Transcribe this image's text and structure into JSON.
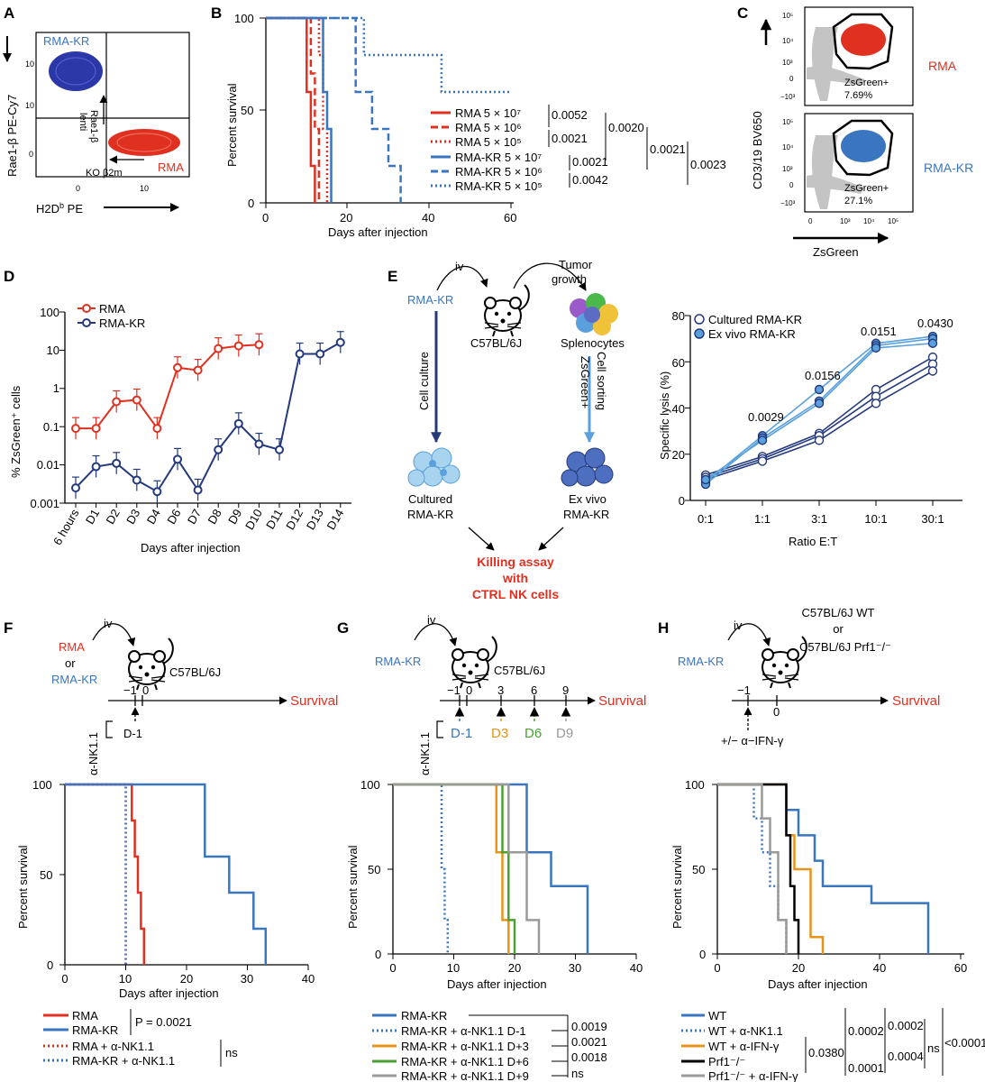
{
  "colors": {
    "rma_red": "#e03020",
    "rmakr_blue": "#3a75c0",
    "navy": "#243a7d",
    "light_blue": "#5aa0dc",
    "orange": "#e8941a",
    "green": "#4aa032",
    "gray": "#9a9a9a"
  },
  "panels": {
    "A": {
      "letter": "A",
      "ylabel": "Rae1-β PE-Cy7",
      "xlabel": "H2D",
      "xlabel_sup": "b",
      "xlabel_tail": " PE",
      "rmakr": "RMA-KR",
      "rma": "RMA",
      "arrow_up_label1": "Rae1-β",
      "arrow_up_label2": "lenti",
      "arrow_left_label": "KO β2m",
      "yticks": [
        "10",
        "10",
        "0"
      ],
      "xticks": [
        "0",
        "10"
      ]
    },
    "B": {
      "letter": "B",
      "ylabel": "Percent survival",
      "xlabel": "Days after injection",
      "xticks": [
        "0",
        "20",
        "40",
        "60"
      ],
      "yticks": [
        "0",
        "50",
        "100"
      ],
      "legend": [
        "RMA 5 × 10⁷",
        "RMA 5 × 10⁶",
        "RMA 5 × 10⁵",
        "RMA-KR 5 × 10⁷",
        "RMA-KR 5 × 10⁶",
        "RMA-KR 5 × 10⁵"
      ],
      "pvalues": [
        "0.0052",
        "0.0021",
        "0.0020",
        "0.0021",
        "0.0021",
        "0.0023",
        "0.0042"
      ]
    },
    "C": {
      "letter": "C",
      "ylabel": "CD3/19 BV650",
      "xlabel": "ZsGreen",
      "top_label": "RMA",
      "top_gate": "ZsGreen+",
      "top_pct": "7.69%",
      "bottom_label": "RMA-KR",
      "bottom_gate": "ZsGreen+",
      "bottom_pct": "27.1%",
      "yticks": [
        "10⁵",
        "10⁴",
        "10³",
        "0",
        "−10³"
      ],
      "xticks": [
        "0",
        "10³",
        "10⁴",
        "10⁵"
      ]
    },
    "D": {
      "letter": "D",
      "ylabel": "% ZsGreen⁺ cells",
      "xlabel": "Days after injection",
      "legend": [
        "RMA",
        "RMA-KR"
      ],
      "yticks": [
        "100",
        "10",
        "1",
        "0.1",
        "0.01",
        "0.001"
      ],
      "xticks": [
        "6 hours",
        "D1",
        "D2",
        "D3",
        "D4",
        "D6",
        "D7",
        "D8",
        "D9",
        "D10",
        "D11",
        "D12",
        "D13",
        "D14"
      ]
    },
    "E": {
      "letter": "E",
      "iv": "iv",
      "rmakr": "RMA-KR",
      "tumor": "Tumor",
      "growth": "growth",
      "mouse": "C57BL/6J",
      "splenocytes": "Splenocytes",
      "cell_culture": "Cell culture",
      "cell_sorting": "Cell sorting",
      "zsgreen": "ZsGreen+",
      "cultured1": "Cultured",
      "cultured2": "RMA-KR",
      "exvivo1": "Ex vivo",
      "exvivo2": "RMA-KR",
      "killing1": "Killing assay",
      "killing2": "with",
      "killing3": "CTRL NK cells",
      "ylabel": "Specific lysis (%)",
      "xlabel": "Ratio E:T",
      "xticks": [
        "0:1",
        "1:1",
        "3:1",
        "10:1",
        "30:1"
      ],
      "yticks": [
        "0",
        "20",
        "40",
        "60",
        "80"
      ],
      "legend": [
        "Cultured RMA-KR",
        "Ex vivo RMA-KR"
      ],
      "pvalues": [
        "0.0029",
        "0.0156",
        "0.0151",
        "0.0430"
      ]
    },
    "F": {
      "letter": "F",
      "iv": "iv",
      "rma": "RMA",
      "or": "or",
      "rmakr": "RMA-KR",
      "mouse": "C57BL/6J",
      "survival": "Survival",
      "t1": "−1",
      "t0": "0",
      "ank": "α-NK1.1",
      "dose": "D-1",
      "ylabel": "Percent survival",
      "xlabel": "Days after injection",
      "xticks": [
        "0",
        "10",
        "20",
        "30",
        "40"
      ],
      "yticks": [
        "0",
        "50",
        "100"
      ],
      "legend": [
        "RMA",
        "RMA-KR",
        "RMA + α-NK1.1",
        "RMA-KR + α-NK1.1"
      ],
      "p1": "P = 0.0021",
      "p2": "ns"
    },
    "G": {
      "letter": "G",
      "iv": "iv",
      "rmakr": "RMA-KR",
      "mouse": "C57BL/6J",
      "survival": "Survival",
      "times": [
        "−1",
        "0",
        "3",
        "6",
        "9"
      ],
      "ank": "α-NK1.1",
      "doses": [
        "D-1",
        "D3",
        "D6",
        "D9"
      ],
      "ylabel": "Percent survival",
      "xlabel": "Days after injection",
      "xticks": [
        "0",
        "10",
        "20",
        "30",
        "40"
      ],
      "yticks": [
        "0",
        "50",
        "100"
      ],
      "legend": [
        "RMA-KR",
        "RMA-KR + α-NK1.1 D-1",
        "RMA-KR + α-NK1.1 D+3",
        "RMA-KR + α-NK1.1 D+6",
        "RMA-KR + α-NK1.1 D+9"
      ],
      "pvalues": [
        "0.0019",
        "0.0021",
        "0.0018",
        "ns"
      ]
    },
    "H": {
      "letter": "H",
      "iv": "iv",
      "rmakr": "RMA-KR",
      "mouse1": "C57BL/6J WT",
      "mouse_or": "or",
      "mouse2": "C57BL/6J Prf1⁻/⁻",
      "survival": "Survival",
      "t1": "−1",
      "t0": "0",
      "treat": "+/− α−IFN-γ",
      "ylabel": "Percent survival",
      "xlabel": "Days after injection",
      "xticks": [
        "0",
        "20",
        "40",
        "60"
      ],
      "yticks": [
        "0",
        "50",
        "100"
      ],
      "legend": [
        "WT",
        "WT + α-NK1.1",
        "WT + α-IFN-γ",
        "Prf1⁻/⁻",
        "Prf1⁻/⁻ + α-IFN-γ"
      ],
      "pvalues": [
        "0.0380",
        "0.0002",
        "0.0001",
        "0.0002",
        "0.0004",
        "ns",
        "<0.0001"
      ]
    }
  },
  "chart_data": [
    {
      "id": "B",
      "type": "line",
      "title": "",
      "xlabel": "Days after injection",
      "ylabel": "Percent survival",
      "xlim": [
        0,
        60
      ],
      "ylim": [
        0,
        100
      ],
      "series": [
        {
          "name": "RMA 5 × 10⁷",
          "x": [
            0,
            10,
            10,
            11,
            11,
            12,
            12
          ],
          "y": [
            100,
            100,
            60,
            60,
            20,
            20,
            0
          ]
        },
        {
          "name": "RMA 5 × 10⁶",
          "x": [
            0,
            11,
            11,
            12,
            12,
            13,
            13
          ],
          "y": [
            100,
            100,
            70,
            70,
            40,
            40,
            0
          ]
        },
        {
          "name": "RMA 5 × 10⁵",
          "x": [
            0,
            13,
            13,
            14,
            14,
            15,
            15
          ],
          "y": [
            100,
            100,
            80,
            80,
            40,
            40,
            0
          ]
        },
        {
          "name": "RMA-KR 5 × 10⁷",
          "x": [
            0,
            14,
            14,
            15,
            15,
            16,
            16
          ],
          "y": [
            100,
            100,
            60,
            60,
            40,
            40,
            0
          ]
        },
        {
          "name": "RMA-KR 5 × 10⁶",
          "x": [
            0,
            22,
            22,
            26,
            26,
            30,
            30,
            33,
            33
          ],
          "y": [
            100,
            100,
            60,
            60,
            40,
            40,
            20,
            20,
            0
          ]
        },
        {
          "name": "RMA-KR 5 × 10⁵",
          "x": [
            0,
            24,
            24,
            43,
            43,
            60
          ],
          "y": [
            100,
            100,
            80,
            80,
            60,
            60
          ]
        }
      ]
    },
    {
      "id": "D",
      "type": "line",
      "title": "",
      "xlabel": "Days after injection",
      "ylabel": "% ZsGreen⁺ cells",
      "yscale": "log",
      "ylim": [
        0.001,
        100
      ],
      "categories": [
        "6 hours",
        "D1",
        "D2",
        "D3",
        "D4",
        "D6",
        "D7",
        "D8",
        "D9",
        "D10",
        "D11",
        "D12",
        "D13",
        "D14"
      ],
      "series": [
        {
          "name": "RMA",
          "values": [
            0.09,
            0.09,
            0.45,
            0.5,
            0.09,
            3.5,
            3.0,
            11,
            13,
            14,
            null,
            null,
            null,
            null
          ]
        },
        {
          "name": "RMA-KR",
          "values": [
            0.0025,
            0.009,
            0.011,
            0.004,
            0.002,
            0.014,
            0.0022,
            0.025,
            0.12,
            0.035,
            0.025,
            8,
            8,
            16
          ]
        }
      ]
    },
    {
      "id": "E",
      "type": "line",
      "title": "",
      "xlabel": "Ratio E:T",
      "ylabel": "Specific lysis (%)",
      "ylim": [
        0,
        80
      ],
      "categories": [
        "0:1",
        "1:1",
        "3:1",
        "10:1",
        "30:1"
      ],
      "series": [
        {
          "name": "Cultured RMA-KR rep1",
          "values": [
            11,
            19,
            29,
            48,
            62
          ]
        },
        {
          "name": "Cultured RMA-KR rep2",
          "values": [
            10,
            18,
            28,
            45,
            59
          ]
        },
        {
          "name": "Cultured RMA-KR rep3",
          "values": [
            9,
            17,
            26,
            42,
            56
          ]
        },
        {
          "name": "Ex vivo RMA-KR rep1",
          "values": [
            8,
            28,
            48,
            68,
            71
          ]
        },
        {
          "name": "Ex vivo RMA-KR rep2",
          "values": [
            7,
            27,
            43,
            67,
            70
          ]
        },
        {
          "name": "Ex vivo RMA-KR rep3",
          "values": [
            9,
            26,
            42,
            66,
            68
          ]
        }
      ]
    },
    {
      "id": "F",
      "type": "line",
      "title": "",
      "xlabel": "Days after injection",
      "ylabel": "Percent survival",
      "xlim": [
        0,
        40
      ],
      "ylim": [
        0,
        100
      ],
      "series": [
        {
          "name": "RMA",
          "x": [
            0,
            11,
            11,
            11.5,
            11.5,
            12,
            12,
            12.5,
            12.5,
            13,
            13
          ],
          "y": [
            100,
            100,
            80,
            80,
            60,
            60,
            40,
            40,
            20,
            20,
            0
          ]
        },
        {
          "name": "RMA-KR",
          "x": [
            0,
            23,
            23,
            27,
            27,
            31,
            31,
            33,
            33
          ],
          "y": [
            100,
            100,
            60,
            60,
            40,
            40,
            20,
            20,
            0
          ]
        },
        {
          "name": "RMA + α-NK1.1",
          "x": [
            0,
            10,
            10
          ],
          "y": [
            100,
            100,
            0
          ]
        },
        {
          "name": "RMA-KR + α-NK1.1",
          "x": [
            0,
            10,
            10
          ],
          "y": [
            100,
            100,
            0
          ]
        }
      ]
    },
    {
      "id": "G",
      "type": "line",
      "title": "",
      "xlabel": "Days after injection",
      "ylabel": "Percent survival",
      "xlim": [
        0,
        40
      ],
      "ylim": [
        0,
        100
      ],
      "series": [
        {
          "name": "RMA-KR",
          "x": [
            0,
            22,
            22,
            26,
            26,
            32,
            32
          ],
          "y": [
            100,
            100,
            60,
            60,
            40,
            40,
            0
          ]
        },
        {
          "name": "RMA-KR + α-NK1.1 D-1",
          "x": [
            0,
            8,
            8,
            8.5,
            8.5,
            9,
            9
          ],
          "y": [
            100,
            100,
            50,
            50,
            20,
            20,
            0
          ]
        },
        {
          "name": "RMA-KR + α-NK1.1 D+3",
          "x": [
            0,
            17,
            17,
            18,
            18,
            19,
            19
          ],
          "y": [
            100,
            100,
            60,
            60,
            20,
            20,
            0
          ]
        },
        {
          "name": "RMA-KR + α-NK1.1 D+6",
          "x": [
            0,
            18,
            18,
            19,
            19,
            20,
            20
          ],
          "y": [
            100,
            100,
            60,
            60,
            20,
            20,
            0
          ]
        },
        {
          "name": "RMA-KR + α-NK1.1 D+9",
          "x": [
            0,
            19,
            19,
            22,
            22,
            24,
            24
          ],
          "y": [
            100,
            100,
            60,
            60,
            20,
            20,
            0
          ]
        }
      ]
    },
    {
      "id": "H",
      "type": "line",
      "title": "",
      "xlabel": "Days after injection",
      "ylabel": "Percent survival",
      "xlim": [
        0,
        60
      ],
      "ylim": [
        0,
        100
      ],
      "series": [
        {
          "name": "WT",
          "x": [
            0,
            17,
            17,
            20,
            20,
            24,
            24,
            26,
            26,
            38,
            38,
            52,
            52
          ],
          "y": [
            100,
            100,
            85,
            85,
            70,
            70,
            55,
            55,
            40,
            40,
            30,
            30,
            0
          ]
        },
        {
          "name": "WT + α-NK1.1",
          "x": [
            0,
            9,
            9,
            11,
            11,
            13,
            13,
            15,
            15,
            17,
            17
          ],
          "y": [
            100,
            100,
            80,
            80,
            60,
            60,
            40,
            40,
            20,
            20,
            0
          ]
        },
        {
          "name": "WT + α-IFN-γ",
          "x": [
            0,
            17,
            17,
            19,
            19,
            23,
            23,
            26,
            26
          ],
          "y": [
            100,
            100,
            70,
            70,
            50,
            50,
            10,
            10,
            0
          ]
        },
        {
          "name": "Prf1⁻/⁻",
          "x": [
            0,
            17,
            17,
            18,
            18,
            19,
            19,
            20,
            20
          ],
          "y": [
            100,
            100,
            70,
            70,
            40,
            40,
            20,
            20,
            0
          ]
        },
        {
          "name": "Prf1⁻/⁻ + α-IFN-γ",
          "x": [
            0,
            11,
            11,
            13,
            13,
            15,
            15,
            17,
            17
          ],
          "y": [
            100,
            100,
            80,
            80,
            60,
            60,
            20,
            20,
            0
          ]
        }
      ]
    }
  ]
}
